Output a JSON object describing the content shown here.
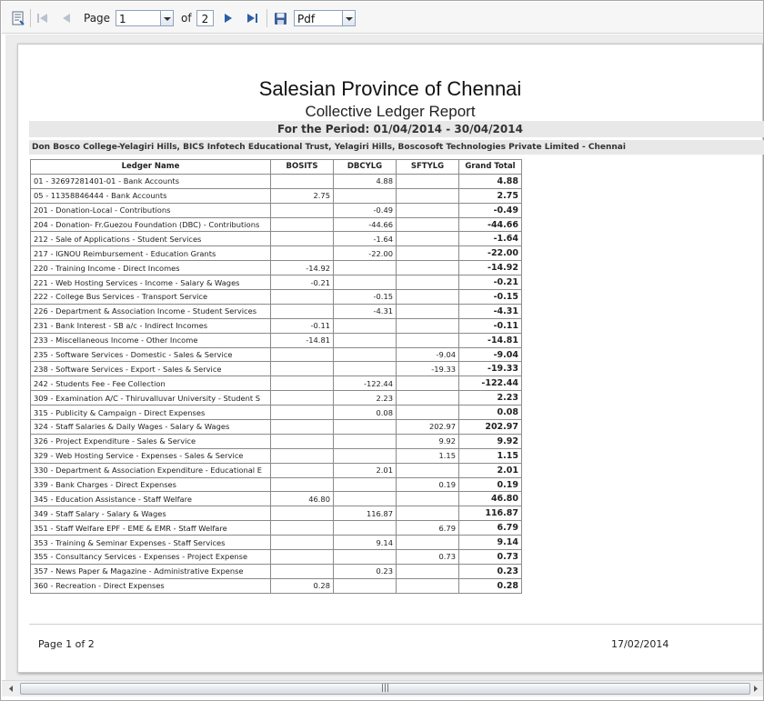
{
  "toolbar": {
    "page_label": "Page",
    "page_value": "1",
    "of_label": "of",
    "total_pages": "2",
    "export_format": "Pdf"
  },
  "report": {
    "title": "Salesian Province of Chennai",
    "subtitle": "Collective Ledger Report",
    "period": "For the Period: 01/04/2014 - 30/04/2014",
    "entities": "Don Bosco College-Yelagiri Hills, BICS Infotech Educational Trust, Yelagiri Hills, Boscosoft Technologies Private Limited - Chennai",
    "columns": [
      "Ledger Name",
      "BOSITS",
      "DBCYLG",
      "SFTYLG",
      "Grand Total"
    ],
    "rows": [
      [
        "01 - 32697281401-01 - Bank Accounts",
        "",
        "4.88",
        "",
        "4.88"
      ],
      [
        "05 - 11358846444 - Bank Accounts",
        "2.75",
        "",
        "",
        "2.75"
      ],
      [
        "201 - Donation-Local - Contributions",
        "",
        "-0.49",
        "",
        "-0.49"
      ],
      [
        "204 - Donation- Fr.Guezou Foundation (DBC) - Contributions",
        "",
        "-44.66",
        "",
        "-44.66"
      ],
      [
        "212 - Sale of Applications - Student Services",
        "",
        "-1.64",
        "",
        "-1.64"
      ],
      [
        "217 - IGNOU Reimbursement - Education Grants",
        "",
        "-22.00",
        "",
        "-22.00"
      ],
      [
        "220 - Training Income  - Direct Incomes",
        "-14.92",
        "",
        "",
        "-14.92"
      ],
      [
        "221 - Web Hosting Services - Income - Salary & Wages",
        "-0.21",
        "",
        "",
        "-0.21"
      ],
      [
        "222 - College Bus Services - Transport Service",
        "",
        "-0.15",
        "",
        "-0.15"
      ],
      [
        "226 - Department & Association Income - Student Services",
        "",
        "-4.31",
        "",
        "-4.31"
      ],
      [
        "231 - Bank Interest - SB a/c - Indirect Incomes",
        "-0.11",
        "",
        "",
        "-0.11"
      ],
      [
        "233 - Miscellaneous Income - Other Income",
        "-14.81",
        "",
        "",
        "-14.81"
      ],
      [
        "235 - Software Services - Domestic - Sales & Service",
        "",
        "",
        "-9.04",
        "-9.04"
      ],
      [
        "238 - Software Services - Export - Sales & Service",
        "",
        "",
        "-19.33",
        "-19.33"
      ],
      [
        "242 - Students  Fee - Fee Collection",
        "",
        "-122.44",
        "",
        "-122.44"
      ],
      [
        "309 - Examination  A/C - Thiruvalluvar University - Student S",
        "",
        "2.23",
        "",
        "2.23"
      ],
      [
        "315 - Publicity & Campaign - Direct Expenses",
        "",
        "0.08",
        "",
        "0.08"
      ],
      [
        "324 - Staff Salaries & Daily Wages - Salary & Wages",
        "",
        "",
        "202.97",
        "202.97"
      ],
      [
        "326 - Project Expenditure - Sales & Service",
        "",
        "",
        "9.92",
        "9.92"
      ],
      [
        "329 - Web Hosting Service - Expenses - Sales & Service",
        "",
        "",
        "1.15",
        "1.15"
      ],
      [
        "330 - Department & Association  Expenditure - Educational E",
        "",
        "2.01",
        "",
        "2.01"
      ],
      [
        "339 - Bank Charges - Direct Expenses",
        "",
        "",
        "0.19",
        "0.19"
      ],
      [
        "345 - Education Assistance - Staff Welfare",
        "46.80",
        "",
        "",
        "46.80"
      ],
      [
        "349 - Staff  Salary - Salary & Wages",
        "",
        "116.87",
        "",
        "116.87"
      ],
      [
        "351 - Staff Welfare EPF - EME & EMR - Staff Welfare",
        "",
        "",
        "6.79",
        "6.79"
      ],
      [
        "353 - Training & Seminar Expenses - Staff Services",
        "",
        "9.14",
        "",
        "9.14"
      ],
      [
        "355 - Consultancy Services - Expenses - Project Expense",
        "",
        "",
        "0.73",
        "0.73"
      ],
      [
        "357 - News Paper & Magazine - Administrative Expense",
        "",
        "0.23",
        "",
        "0.23"
      ],
      [
        "360 - Recreation - Direct Expenses",
        "0.28",
        "",
        "",
        "0.28"
      ]
    ],
    "footer_page": "Page 1 of 2",
    "footer_date": "17/02/2014"
  }
}
